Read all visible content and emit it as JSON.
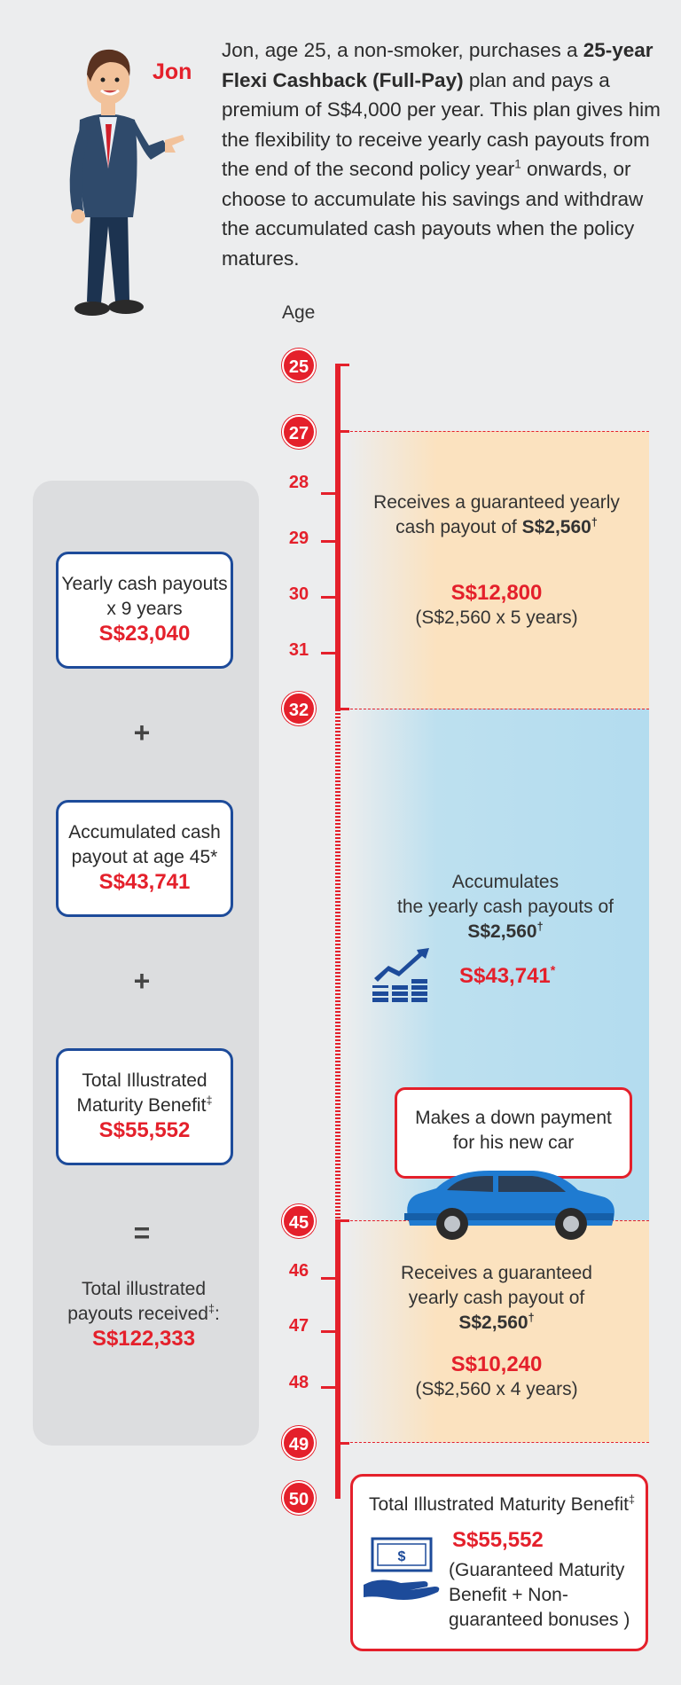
{
  "person": {
    "name": "Jon"
  },
  "intro": {
    "part1": "Jon, age 25, a non-smoker, purchases a ",
    "plan": "25-year Flexi Cashback (Full-Pay)",
    "part2": " plan and pays a premium of S$4,000 per year. This plan gives him the flexibility to receive yearly cash payouts from the end of the second policy year",
    "sup": "1",
    "part3": " onwards, or choose to accumulate his savings and withdraw the accumulated cash payouts when the policy matures."
  },
  "timeline": {
    "age_label": "Age",
    "ages": [
      "25",
      "27",
      "28",
      "29",
      "30",
      "31",
      "32",
      "45",
      "46",
      "47",
      "48",
      "49",
      "50"
    ]
  },
  "phase1": {
    "line1": "Receives a guaranteed yearly",
    "line2": "cash payout of ",
    "amount": "S$2,560",
    "mark": "†",
    "total": "S$12,800",
    "calc": "(S$2,560 x 5 years)"
  },
  "phase2": {
    "line1": "Accumulates",
    "line2": "the yearly cash payouts of",
    "amount": "S$2,560",
    "mark": "†",
    "total": "S$43,741",
    "total_mark": "*"
  },
  "callout": {
    "line1": "Makes a down payment",
    "line2": "for his new car"
  },
  "phase3": {
    "line1": "Receives a guaranteed",
    "line2": "yearly cash payout of",
    "amount": "S$2,560",
    "mark": "†",
    "total": "S$10,240",
    "calc": "(S$2,560 x 4 years)"
  },
  "final": {
    "title": "Total Illustrated Maturity Benefit",
    "title_mark": "‡",
    "amount": "S$55,552",
    "line1": "(Guaranteed Maturity",
    "line2": "Benefit + Non-",
    "line3": "guaranteed bonuses )"
  },
  "summary": {
    "box1": {
      "line1": "Yearly cash payouts",
      "line2": "x 9 years",
      "amount": "S$23,040"
    },
    "op1": "+",
    "box2": {
      "line1": "Accumulated cash",
      "line2": "payout at age 45*",
      "amount": "S$43,741"
    },
    "op2": "+",
    "box3": {
      "line1": "Total Illustrated",
      "line2": "Maturity Benefit",
      "mark": "‡",
      "amount": "S$55,552"
    },
    "op3": "=",
    "total": {
      "line1": "Total illustrated",
      "line2": "payouts received",
      "mark": "‡",
      "colon": ":",
      "amount": "S$122,333"
    }
  },
  "colors": {
    "red": "#e4202b",
    "navy": "#1d4b9a",
    "orange_band": "#fbe2bf",
    "blue_band": "#b3dcef"
  },
  "icons": [
    "businessman-illustration",
    "growth-coins-icon",
    "car-illustration",
    "money-hand-icon"
  ]
}
